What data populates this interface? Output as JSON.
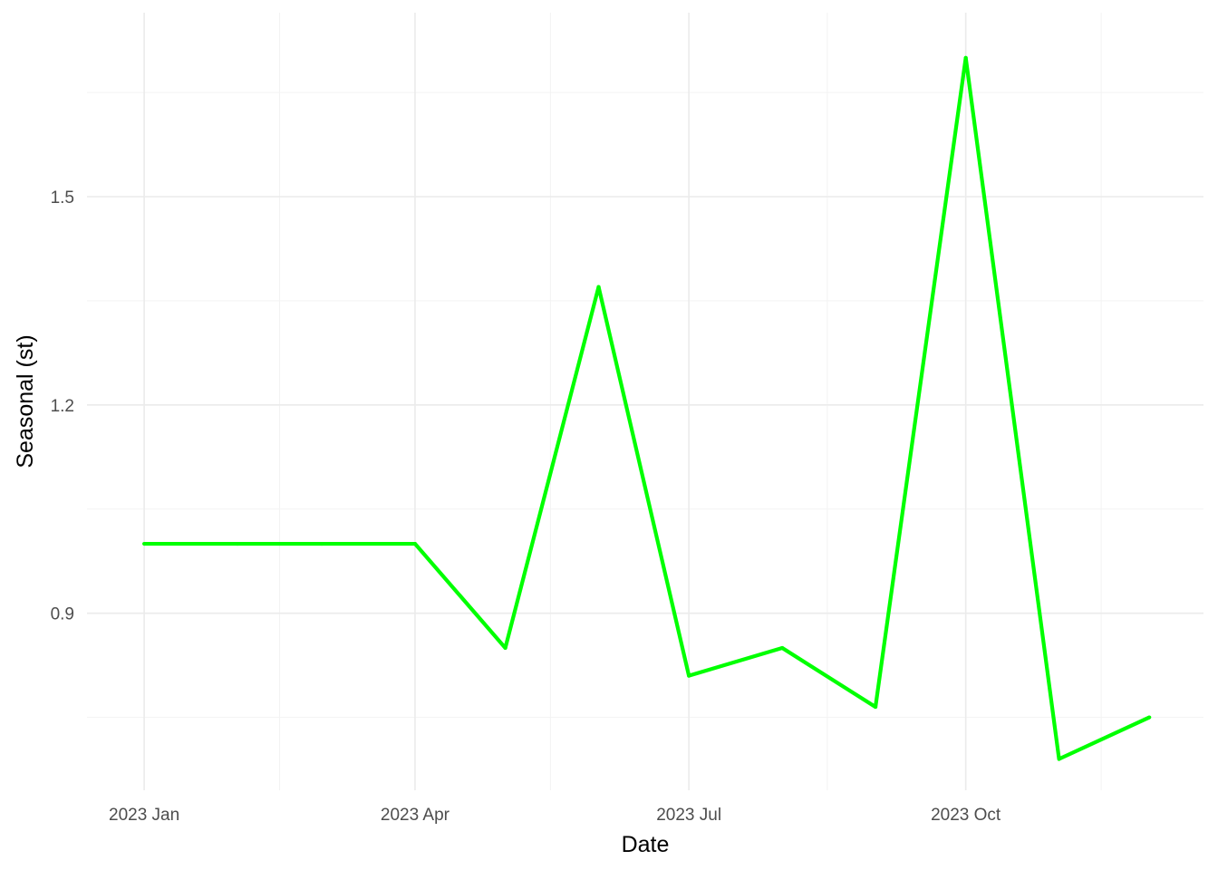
{
  "chart_data": {
    "type": "line",
    "title": "",
    "xlabel": "Date",
    "ylabel": "Seasonal (st)",
    "x": [
      "2023-01-01",
      "2023-02-01",
      "2023-03-01",
      "2023-04-01",
      "2023-05-01",
      "2023-06-01",
      "2023-07-01",
      "2023-08-01",
      "2023-09-01",
      "2023-10-01",
      "2023-11-01",
      "2023-12-01"
    ],
    "series": [
      {
        "values": [
          1.0,
          1.0,
          1.0,
          1.0,
          0.85,
          1.37,
          0.81,
          0.85,
          0.765,
          1.7,
          0.69,
          0.75
        ],
        "color": "#00ff00"
      }
    ],
    "xlim": [
      "2022-12-13",
      "2023-12-19"
    ],
    "ylim": [
      0.645,
      1.765
    ],
    "x_ticks": [
      {
        "date": "2023-01-01",
        "label": "2023 Jan"
      },
      {
        "date": "2023-04-01",
        "label": "2023 Apr"
      },
      {
        "date": "2023-07-01",
        "label": "2023 Jul"
      },
      {
        "date": "2023-10-01",
        "label": "2023 Oct"
      }
    ],
    "x_minor_ticks": [
      "2023-02-15",
      "2023-05-16",
      "2023-08-16",
      "2023-11-15"
    ],
    "y_ticks": [
      {
        "value": 0.9,
        "label": "0.9"
      },
      {
        "value": 1.2,
        "label": "1.2"
      },
      {
        "value": 1.5,
        "label": "1.5"
      }
    ],
    "y_minor_ticks": [
      0.75,
      1.05,
      1.35,
      1.65
    ],
    "grid": true,
    "legend": "none"
  }
}
